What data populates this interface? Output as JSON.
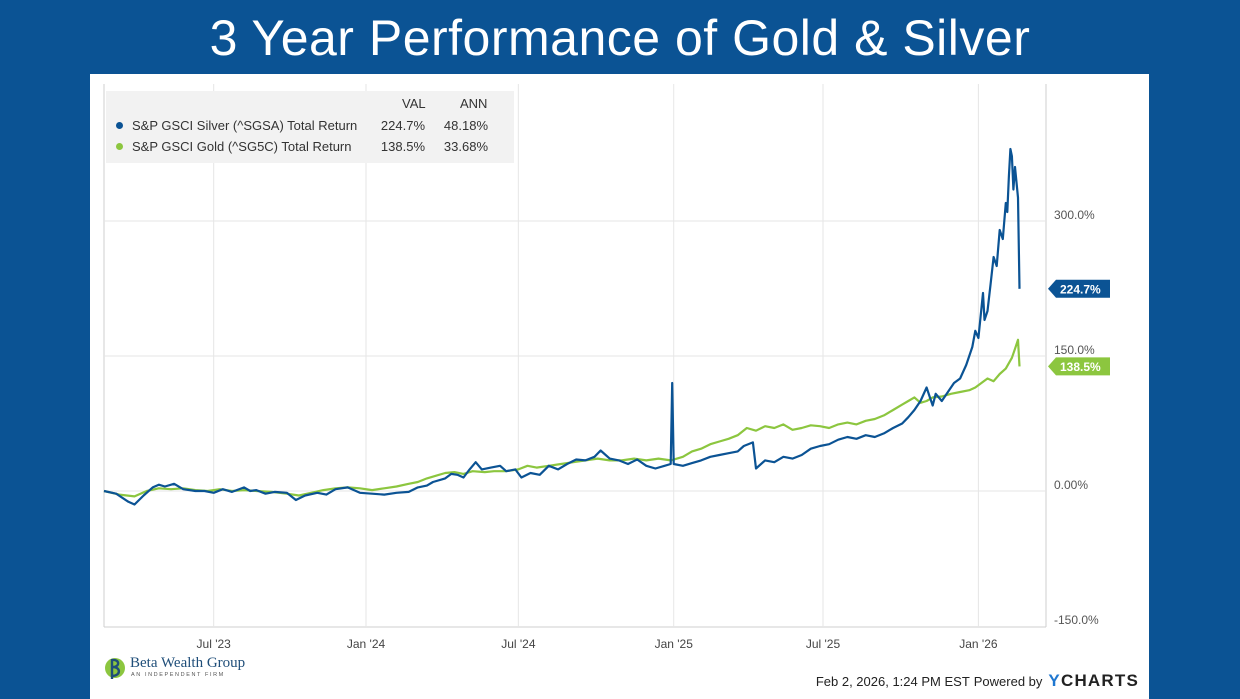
{
  "slide": {
    "title": "3 Year Performance of Gold & Silver",
    "background_color": "#0b5394"
  },
  "brand": {
    "name": "Beta Wealth Group",
    "tagline": "AN INDEPENDENT FIRM"
  },
  "footer": {
    "timestamp": "Feb 2, 2026, 1:24 PM EST",
    "powered_by": "Powered by",
    "provider_y": "Y",
    "provider_rest": "CHARTS"
  },
  "chart_data": {
    "type": "line",
    "title": "",
    "x_label": "",
    "y_label": "",
    "x_range": [
      0,
      3.08
    ],
    "ylim": [
      -150,
      440
    ],
    "y_ticks": [
      {
        "value": 300,
        "label": "300.0%"
      },
      {
        "value": 150,
        "label": "150.0%"
      },
      {
        "value": 0,
        "label": "0.00%"
      },
      {
        "value": -150,
        "label": "-150.0%"
      }
    ],
    "x_ticks": [
      {
        "value": 0.36,
        "label": "Jul '23"
      },
      {
        "value": 0.86,
        "label": "Jan '24"
      },
      {
        "value": 1.36,
        "label": "Jul '24"
      },
      {
        "value": 1.87,
        "label": "Jan '25"
      },
      {
        "value": 2.36,
        "label": "Jul '25"
      },
      {
        "value": 2.87,
        "label": "Jan '26"
      }
    ],
    "legend": {
      "col_val": "VAL",
      "col_ann": "ANN",
      "rows": [
        {
          "name": "S&P GSCI Silver (^SGSA) Total Return",
          "val": "224.7%",
          "ann": "48.18%",
          "color": "#0b5394"
        },
        {
          "name": "S&P GSCI Gold (^SG5C) Total Return",
          "val": "138.5%",
          "ann": "33.68%",
          "color": "#8cc63f"
        }
      ]
    },
    "series": [
      {
        "name": "S&P GSCI Silver (^SGSA) Total Return",
        "color": "#0b5394",
        "end_label": "224.7%",
        "end_value": 224.7,
        "points": [
          [
            0,
            0
          ],
          [
            0.04,
            -3
          ],
          [
            0.08,
            -12
          ],
          [
            0.1,
            -15
          ],
          [
            0.13,
            -5
          ],
          [
            0.16,
            4
          ],
          [
            0.18,
            7
          ],
          [
            0.2,
            5
          ],
          [
            0.23,
            8
          ],
          [
            0.26,
            2
          ],
          [
            0.3,
            0
          ],
          [
            0.33,
            0
          ],
          [
            0.36,
            -2
          ],
          [
            0.39,
            2
          ],
          [
            0.42,
            -1
          ],
          [
            0.46,
            4
          ],
          [
            0.48,
            0
          ],
          [
            0.5,
            1
          ],
          [
            0.53,
            -3
          ],
          [
            0.56,
            -1
          ],
          [
            0.6,
            -2
          ],
          [
            0.63,
            -10
          ],
          [
            0.66,
            -5
          ],
          [
            0.7,
            -2
          ],
          [
            0.73,
            -4
          ],
          [
            0.76,
            2
          ],
          [
            0.8,
            4
          ],
          [
            0.84,
            -2
          ],
          [
            0.88,
            -3
          ],
          [
            0.92,
            -4
          ],
          [
            0.96,
            -2
          ],
          [
            1.0,
            -1
          ],
          [
            1.03,
            4
          ],
          [
            1.06,
            6
          ],
          [
            1.08,
            10
          ],
          [
            1.12,
            14
          ],
          [
            1.14,
            19
          ],
          [
            1.16,
            18
          ],
          [
            1.18,
            15
          ],
          [
            1.2,
            24
          ],
          [
            1.22,
            32
          ],
          [
            1.24,
            24
          ],
          [
            1.27,
            26
          ],
          [
            1.3,
            28
          ],
          [
            1.32,
            22
          ],
          [
            1.35,
            24
          ],
          [
            1.37,
            15
          ],
          [
            1.4,
            20
          ],
          [
            1.43,
            18
          ],
          [
            1.46,
            28
          ],
          [
            1.49,
            24
          ],
          [
            1.52,
            30
          ],
          [
            1.55,
            35
          ],
          [
            1.58,
            34
          ],
          [
            1.61,
            38
          ],
          [
            1.63,
            45
          ],
          [
            1.66,
            36
          ],
          [
            1.69,
            34
          ],
          [
            1.72,
            30
          ],
          [
            1.75,
            35
          ],
          [
            1.78,
            28
          ],
          [
            1.81,
            25
          ],
          [
            1.84,
            28
          ],
          [
            1.86,
            30
          ],
          [
            1.865,
            120
          ],
          [
            1.87,
            30
          ],
          [
            1.9,
            28
          ],
          [
            1.93,
            31
          ],
          [
            1.96,
            34
          ],
          [
            1.99,
            38
          ],
          [
            2.02,
            40
          ],
          [
            2.05,
            42
          ],
          [
            2.08,
            44
          ],
          [
            2.1,
            50
          ],
          [
            2.13,
            54
          ],
          [
            2.14,
            25
          ],
          [
            2.17,
            34
          ],
          [
            2.2,
            32
          ],
          [
            2.23,
            38
          ],
          [
            2.26,
            36
          ],
          [
            2.29,
            40
          ],
          [
            2.32,
            47
          ],
          [
            2.35,
            50
          ],
          [
            2.38,
            52
          ],
          [
            2.41,
            57
          ],
          [
            2.44,
            60
          ],
          [
            2.47,
            58
          ],
          [
            2.5,
            62
          ],
          [
            2.53,
            60
          ],
          [
            2.56,
            64
          ],
          [
            2.59,
            70
          ],
          [
            2.62,
            75
          ],
          [
            2.64,
            82
          ],
          [
            2.66,
            90
          ],
          [
            2.68,
            100
          ],
          [
            2.7,
            115
          ],
          [
            2.71,
            105
          ],
          [
            2.72,
            95
          ],
          [
            2.73,
            108
          ],
          [
            2.75,
            100
          ],
          [
            2.77,
            110
          ],
          [
            2.79,
            120
          ],
          [
            2.81,
            125
          ],
          [
            2.83,
            140
          ],
          [
            2.85,
            160
          ],
          [
            2.86,
            178
          ],
          [
            2.87,
            170
          ],
          [
            2.885,
            220
          ],
          [
            2.89,
            190
          ],
          [
            2.9,
            200
          ],
          [
            2.91,
            230
          ],
          [
            2.92,
            260
          ],
          [
            2.93,
            250
          ],
          [
            2.94,
            290
          ],
          [
            2.95,
            280
          ],
          [
            2.96,
            320
          ],
          [
            2.965,
            310
          ],
          [
            2.97,
            350
          ],
          [
            2.975,
            380
          ],
          [
            2.98,
            372
          ],
          [
            2.985,
            335
          ],
          [
            2.99,
            360
          ],
          [
            3.0,
            326
          ],
          [
            3.005,
            224.7
          ]
        ]
      },
      {
        "name": "S&P GSCI Gold (^SG5C) Total Return",
        "color": "#8cc63f",
        "end_label": "138.5%",
        "end_value": 138.5,
        "points": [
          [
            0,
            0
          ],
          [
            0.05,
            -4
          ],
          [
            0.1,
            -6
          ],
          [
            0.14,
            0
          ],
          [
            0.18,
            3
          ],
          [
            0.22,
            2
          ],
          [
            0.26,
            3
          ],
          [
            0.3,
            1
          ],
          [
            0.34,
            0
          ],
          [
            0.38,
            2
          ],
          [
            0.42,
            0
          ],
          [
            0.46,
            1
          ],
          [
            0.5,
            0
          ],
          [
            0.55,
            -1
          ],
          [
            0.6,
            -3
          ],
          [
            0.64,
            -5
          ],
          [
            0.68,
            -2
          ],
          [
            0.72,
            1
          ],
          [
            0.76,
            3
          ],
          [
            0.8,
            4
          ],
          [
            0.84,
            3
          ],
          [
            0.88,
            1
          ],
          [
            0.92,
            3
          ],
          [
            0.96,
            5
          ],
          [
            1.0,
            8
          ],
          [
            1.03,
            10
          ],
          [
            1.06,
            14
          ],
          [
            1.09,
            17
          ],
          [
            1.12,
            20
          ],
          [
            1.15,
            21
          ],
          [
            1.18,
            19
          ],
          [
            1.21,
            22
          ],
          [
            1.25,
            21
          ],
          [
            1.28,
            22
          ],
          [
            1.32,
            22
          ],
          [
            1.36,
            24
          ],
          [
            1.39,
            28
          ],
          [
            1.42,
            26
          ],
          [
            1.46,
            28
          ],
          [
            1.5,
            30
          ],
          [
            1.54,
            32
          ],
          [
            1.58,
            34
          ],
          [
            1.62,
            36
          ],
          [
            1.66,
            34
          ],
          [
            1.7,
            34
          ],
          [
            1.74,
            36
          ],
          [
            1.78,
            34
          ],
          [
            1.82,
            36
          ],
          [
            1.86,
            34
          ],
          [
            1.9,
            38
          ],
          [
            1.93,
            44
          ],
          [
            1.96,
            47
          ],
          [
            1.99,
            52
          ],
          [
            2.02,
            55
          ],
          [
            2.05,
            58
          ],
          [
            2.08,
            62
          ],
          [
            2.11,
            70
          ],
          [
            2.14,
            67
          ],
          [
            2.17,
            72
          ],
          [
            2.2,
            70
          ],
          [
            2.23,
            74
          ],
          [
            2.26,
            68
          ],
          [
            2.29,
            70
          ],
          [
            2.32,
            73
          ],
          [
            2.35,
            72
          ],
          [
            2.38,
            70
          ],
          [
            2.41,
            74
          ],
          [
            2.44,
            76
          ],
          [
            2.47,
            74
          ],
          [
            2.5,
            78
          ],
          [
            2.53,
            80
          ],
          [
            2.56,
            84
          ],
          [
            2.59,
            90
          ],
          [
            2.62,
            96
          ],
          [
            2.64,
            100
          ],
          [
            2.66,
            104
          ],
          [
            2.68,
            98
          ],
          [
            2.7,
            100
          ],
          [
            2.72,
            104
          ],
          [
            2.75,
            105
          ],
          [
            2.78,
            108
          ],
          [
            2.81,
            110
          ],
          [
            2.84,
            112
          ],
          [
            2.86,
            115
          ],
          [
            2.88,
            120
          ],
          [
            2.9,
            125
          ],
          [
            2.92,
            122
          ],
          [
            2.94,
            130
          ],
          [
            2.96,
            136
          ],
          [
            2.98,
            148
          ],
          [
            2.99,
            158
          ],
          [
            3.0,
            168
          ],
          [
            3.005,
            138.5
          ]
        ]
      }
    ]
  }
}
